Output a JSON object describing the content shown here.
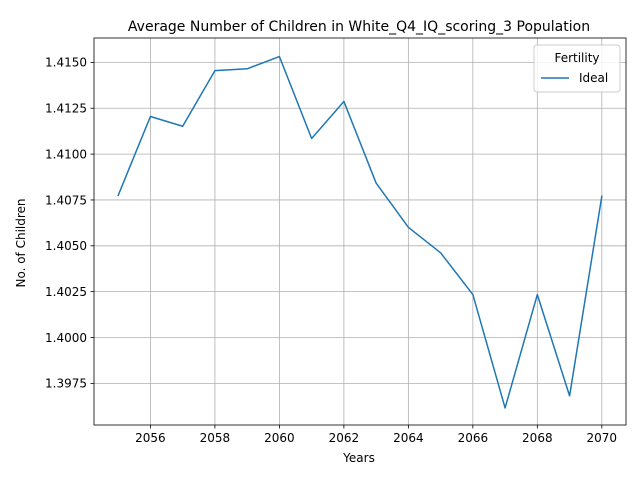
{
  "chart_data": {
    "type": "line",
    "title": "Average Number of Children in White_Q4_IQ_scoring_3 Population",
    "xlabel": "Years",
    "ylabel": "No. of Children",
    "xlim": [
      2054.25,
      2070.75
    ],
    "ylim": [
      1.39523,
      1.41633
    ],
    "x_ticks": [
      2056,
      2058,
      2060,
      2062,
      2064,
      2066,
      2068,
      2070
    ],
    "y_ticks": [
      1.3975,
      1.4,
      1.4025,
      1.405,
      1.4075,
      1.41,
      1.4125,
      1.415
    ],
    "x_tick_labels": [
      "2056",
      "2058",
      "2060",
      "2062",
      "2064",
      "2066",
      "2068",
      "2070"
    ],
    "y_tick_labels": [
      "1.3975",
      "1.4000",
      "1.4025",
      "1.4050",
      "1.4075",
      "1.4100",
      "1.4125",
      "1.4150"
    ],
    "grid": true,
    "legend": {
      "title": "Fertility",
      "placement": "top-right"
    },
    "x": [
      2055,
      2056,
      2057,
      2058,
      2059,
      2060,
      2061,
      2062,
      2063,
      2064,
      2065,
      2066,
      2067,
      2068,
      2069,
      2070
    ],
    "series": [
      {
        "name": "Ideal",
        "color": "#1f77b4",
        "values": [
          1.40775,
          1.41205,
          1.41152,
          1.41455,
          1.41465,
          1.41532,
          1.41085,
          1.41287,
          1.40842,
          1.40601,
          1.40462,
          1.40234,
          1.39616,
          1.40234,
          1.39682,
          1.4077
        ]
      }
    ]
  }
}
